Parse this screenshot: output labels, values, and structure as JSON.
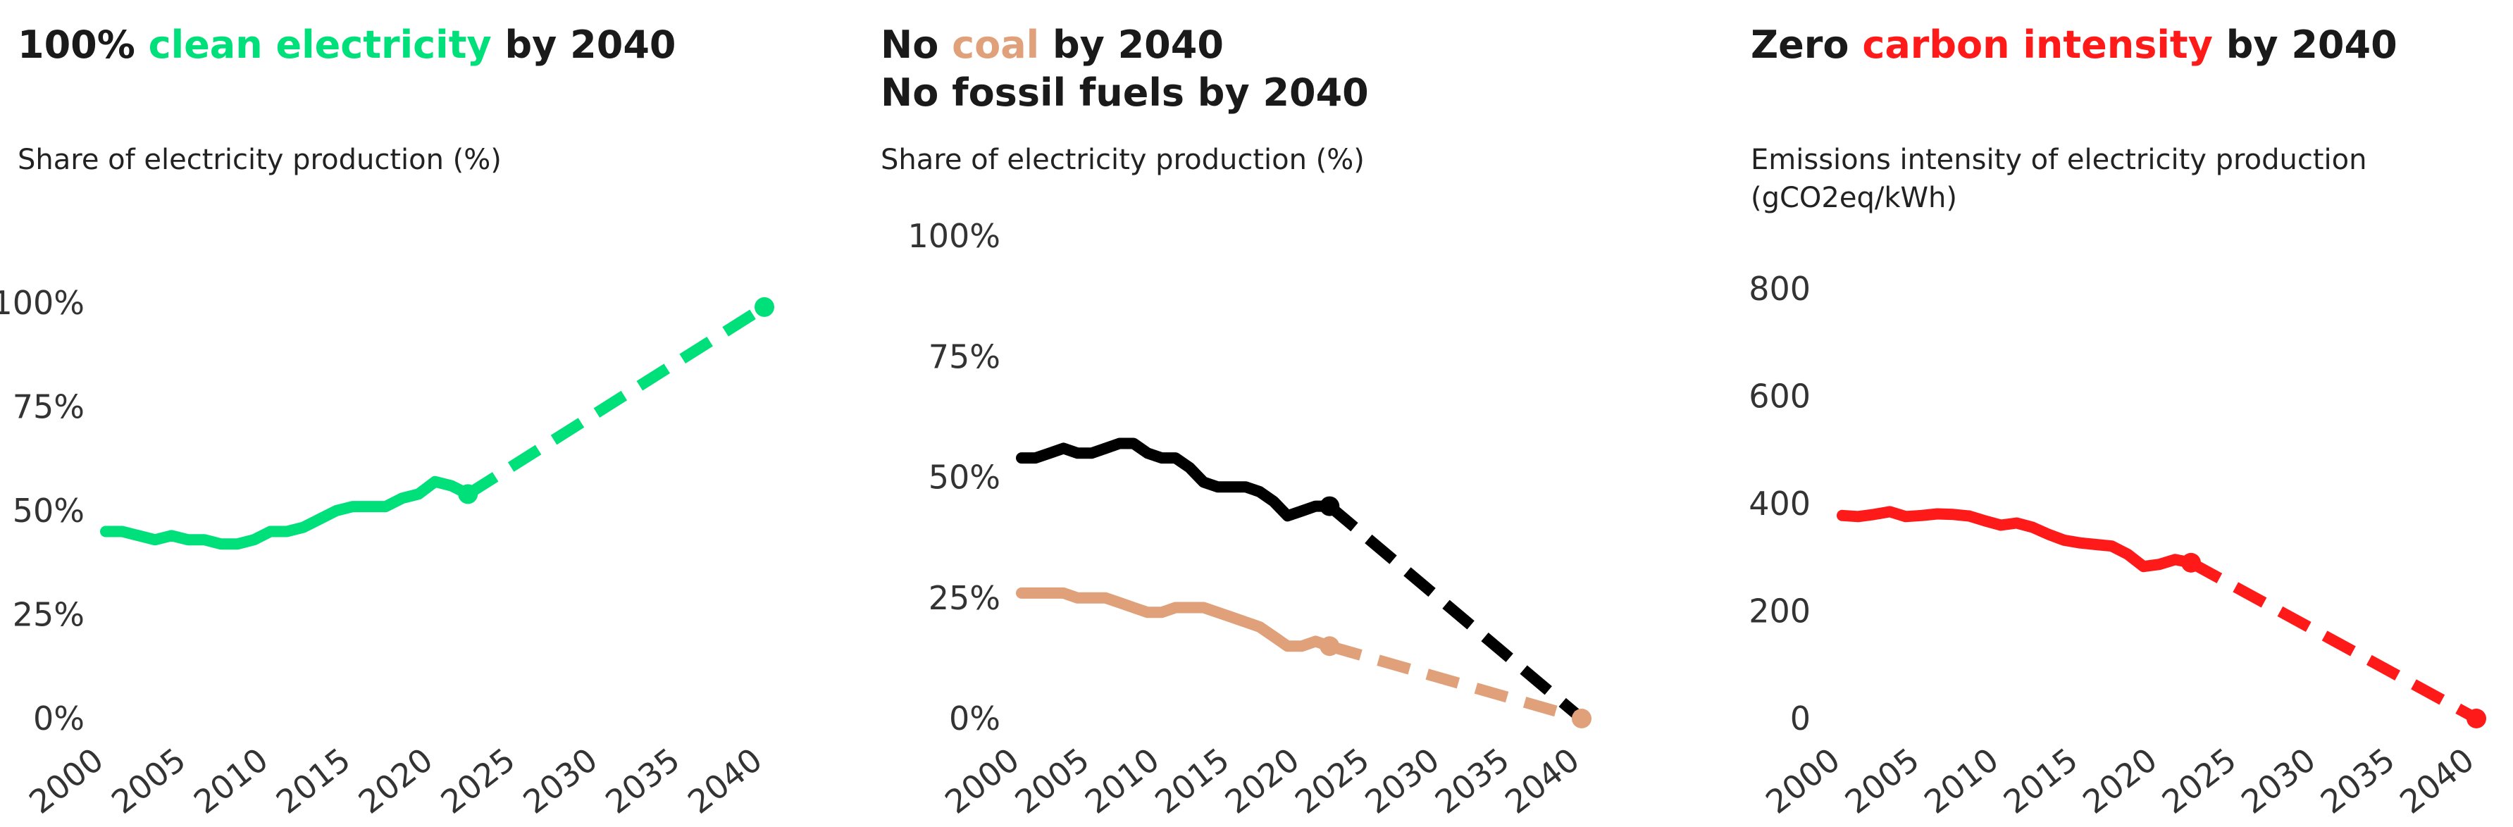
{
  "chart_data": [
    {
      "type": "line",
      "title": {
        "before": "100% ",
        "highlight": "clean electricity",
        "after": " by 2040",
        "highlight_color": "#00e07a"
      },
      "subtitle": "Share of electricity production (%)",
      "line_color": "#00e07a",
      "ylim": [
        0,
        100
      ],
      "yticks": [
        0,
        25,
        50,
        75,
        100
      ],
      "ytick_labels": [
        "0%",
        "25%",
        "50%",
        "75%",
        "100%"
      ],
      "xticks": [
        2000,
        2005,
        2010,
        2015,
        2020,
        2025,
        2030,
        2035,
        2040
      ],
      "xtick_labels": [
        "2000",
        "2005",
        "2010",
        "2015",
        "2020",
        "2025",
        "2030",
        "2035",
        "2040"
      ],
      "series": [
        {
          "x": [
            2000,
            2001,
            2002,
            2003,
            2004,
            2005,
            2006,
            2007,
            2008,
            2009,
            2010,
            2011,
            2012,
            2013,
            2014,
            2015,
            2016,
            2017,
            2018,
            2019,
            2020,
            2021,
            2022
          ],
          "values": [
            45,
            45,
            44,
            43,
            44,
            43,
            43,
            42,
            42,
            43,
            45,
            45,
            46,
            48,
            50,
            51,
            51,
            51,
            53,
            54,
            57,
            56,
            54
          ],
          "projection_x": [
            2022,
            2040
          ],
          "projection_values": [
            54,
            99
          ],
          "marker_x": [
            2022,
            2040
          ],
          "marker_values": [
            54,
            99
          ]
        }
      ]
    },
    {
      "type": "line",
      "title": {
        "before": "No ",
        "highlight": "coal",
        "after": " by 2040",
        "line2": "No fossil fuels by 2040",
        "highlight_color": "#e0a07a"
      },
      "subtitle": "Share of electricity production (%)",
      "ylim": [
        0,
        100
      ],
      "yticks": [
        0,
        25,
        50,
        75,
        100
      ],
      "ytick_labels": [
        "0%",
        "25%",
        "50%",
        "75%",
        "100%"
      ],
      "xticks": [
        2000,
        2005,
        2010,
        2015,
        2020,
        2025,
        2030,
        2035,
        2040
      ],
      "xtick_labels": [
        "2000",
        "2005",
        "2010",
        "2015",
        "2020",
        "2025",
        "2030",
        "2035",
        "2040"
      ],
      "series": [
        {
          "color": "#000000",
          "x": [
            2000,
            2001,
            2002,
            2003,
            2004,
            2005,
            2006,
            2007,
            2008,
            2009,
            2010,
            2011,
            2012,
            2013,
            2014,
            2015,
            2016,
            2017,
            2018,
            2019,
            2020,
            2021,
            2022
          ],
          "values": [
            54,
            54,
            55,
            56,
            55,
            55,
            56,
            57,
            57,
            55,
            54,
            54,
            52,
            49,
            48,
            48,
            48,
            47,
            45,
            42,
            43,
            44,
            44
          ],
          "projection_x": [
            2022,
            2040
          ],
          "projection_values": [
            44,
            0
          ],
          "marker_x": [
            2022
          ],
          "marker_values": [
            44
          ]
        },
        {
          "color": "#e0a07a",
          "x": [
            2000,
            2001,
            2002,
            2003,
            2004,
            2005,
            2006,
            2007,
            2008,
            2009,
            2010,
            2011,
            2012,
            2013,
            2014,
            2015,
            2016,
            2017,
            2018,
            2019,
            2020,
            2021,
            2022
          ],
          "values": [
            26,
            26,
            26,
            26,
            25,
            25,
            25,
            24,
            23,
            22,
            22,
            23,
            23,
            23,
            22,
            21,
            20,
            19,
            17,
            15,
            15,
            16,
            15
          ],
          "projection_x": [
            2022,
            2040
          ],
          "projection_values": [
            15,
            0
          ],
          "marker_x": [
            2022,
            2040
          ],
          "marker_values": [
            15,
            0
          ]
        }
      ]
    },
    {
      "type": "line",
      "title": {
        "before": "Zero ",
        "highlight": "carbon intensity",
        "after": " by 2040",
        "highlight_color": "#ff1a1a"
      },
      "subtitle": "Emissions intensity of electricity production (gCO2eq/kWh)",
      "line_color": "#ff1a1a",
      "ylim": [
        0,
        800
      ],
      "yticks": [
        0,
        200,
        400,
        600,
        800
      ],
      "ytick_labels": [
        "0",
        "200",
        "400",
        "600",
        "800"
      ],
      "xticks": [
        2000,
        2005,
        2010,
        2015,
        2020,
        2025,
        2030,
        2035,
        2040
      ],
      "xtick_labels": [
        "2000",
        "2005",
        "2010",
        "2015",
        "2020",
        "2025",
        "2030",
        "2035",
        "2040"
      ],
      "series": [
        {
          "x": [
            2000,
            2001,
            2002,
            2003,
            2004,
            2005,
            2006,
            2007,
            2008,
            2009,
            2010,
            2011,
            2012,
            2013,
            2014,
            2015,
            2016,
            2017,
            2018,
            2019,
            2020,
            2021,
            2022
          ],
          "values": [
            378,
            376,
            380,
            385,
            376,
            378,
            381,
            380,
            377,
            368,
            360,
            364,
            356,
            343,
            332,
            327,
            324,
            321,
            306,
            283,
            287,
            296,
            290
          ],
          "projection_x": [
            2022,
            2040
          ],
          "projection_values": [
            290,
            0
          ],
          "marker_x": [
            2022,
            2040
          ],
          "marker_values": [
            290,
            0
          ]
        }
      ]
    }
  ]
}
